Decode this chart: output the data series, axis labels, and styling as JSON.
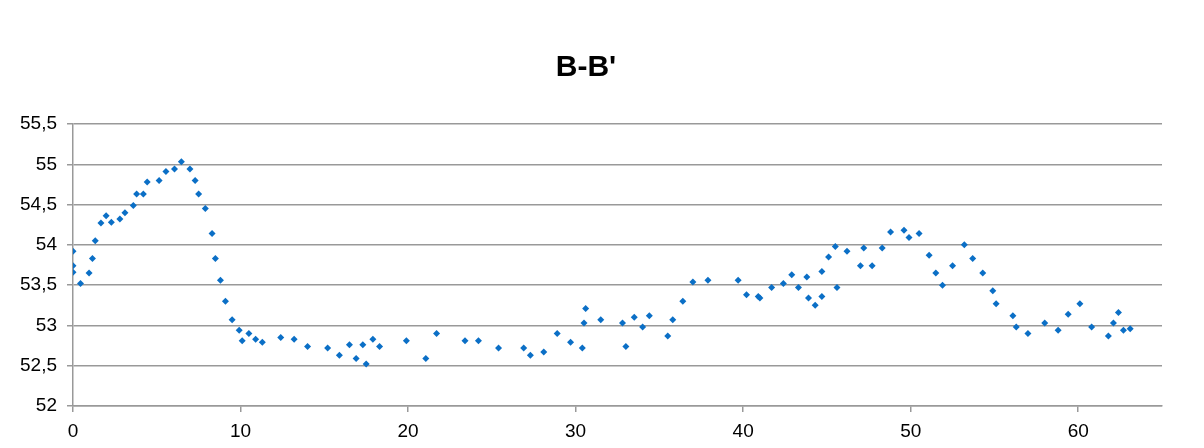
{
  "chart_data": {
    "type": "scatter",
    "title": "B-B'",
    "marker": "diamond",
    "grid": "y",
    "legend": false,
    "xlim": [
      0,
      65
    ],
    "xticks": [
      0,
      10,
      20,
      30,
      40,
      50,
      60
    ],
    "ylim": [
      52,
      55.5
    ],
    "yticks": [
      52,
      {
        "value": 52.5,
        "label": "52,5"
      },
      53,
      {
        "value": 53.5,
        "label": "53,5"
      },
      54,
      {
        "value": 54.5,
        "label": "54,5"
      },
      55,
      {
        "value": 55.5,
        "label": "55,5"
      }
    ],
    "series": [
      {
        "color": "#0b6fc6",
        "x": [
          0,
          0,
          0,
          0.45,
          0.96,
          1.16,
          1.33,
          1.67,
          1.98,
          2.29,
          2.8,
          3.1,
          3.6,
          3.8,
          4.2,
          4.43,
          5.14,
          5.55,
          6.06,
          6.47,
          6.98,
          7.29,
          7.5,
          7.9,
          8.3,
          8.5,
          8.8,
          9.1,
          9.5,
          9.92,
          10.1,
          10.5,
          10.9,
          11.3,
          12.4,
          13.2,
          14.0,
          15.2,
          15.9,
          16.5,
          16.9,
          17.3,
          17.5,
          17.9,
          18.3,
          19.9,
          21.06,
          21.7,
          23.4,
          24.2,
          25.4,
          26.9,
          27.3,
          28.1,
          28.9,
          29.7,
          30.4,
          30.5,
          30.6,
          31.5,
          32.8,
          33.0,
          33.5,
          34.0,
          34.4,
          35.5,
          35.8,
          36.4,
          37.0,
          37.9,
          39.7,
          40.2,
          40.9,
          41.0,
          41.7,
          42.4,
          42.9,
          43.3,
          43.8,
          43.9,
          44.3,
          44.7,
          44.7,
          45.1,
          45.5,
          45.6,
          46.2,
          47.0,
          47.2,
          47.7,
          48.3,
          48.8,
          49.6,
          49.9,
          50.5,
          51.1,
          51.5,
          51.9,
          52.5,
          53.2,
          53.7,
          54.3,
          54.9,
          55.1,
          56.1,
          56.3,
          57.0,
          58.0,
          58.8,
          59.4,
          60.1,
          60.8,
          61.8,
          62.1,
          62.4,
          62.7,
          63.1
        ],
        "values": [
          53.92,
          53.74,
          53.66,
          53.52,
          53.65,
          53.83,
          54.05,
          54.27,
          54.36,
          54.28,
          54.32,
          54.4,
          54.49,
          54.63,
          54.63,
          54.78,
          54.8,
          54.91,
          54.94,
          55.03,
          54.94,
          54.8,
          54.63,
          54.45,
          54.14,
          53.83,
          53.56,
          53.3,
          53.07,
          52.94,
          52.81,
          52.9,
          52.83,
          52.79,
          52.85,
          52.83,
          52.74,
          52.72,
          52.63,
          52.76,
          52.59,
          52.76,
          52.52,
          52.83,
          52.74,
          52.81,
          52.59,
          52.9,
          52.81,
          52.81,
          52.72,
          52.72,
          52.63,
          52.67,
          52.9,
          52.79,
          52.72,
          53.03,
          53.21,
          53.07,
          53.03,
          52.74,
          53.1,
          52.98,
          53.12,
          52.87,
          53.07,
          53.3,
          53.54,
          53.56,
          53.56,
          53.38,
          53.36,
          53.34,
          53.47,
          53.52,
          53.63,
          53.47,
          53.6,
          53.34,
          53.25,
          53.36,
          53.67,
          53.85,
          53.98,
          53.47,
          53.92,
          53.74,
          53.96,
          53.74,
          53.96,
          54.16,
          54.18,
          54.09,
          54.14,
          53.87,
          53.65,
          53.5,
          53.74,
          54.0,
          53.83,
          53.65,
          53.43,
          53.27,
          53.12,
          52.98,
          52.9,
          53.03,
          52.94,
          53.14,
          53.27,
          52.98,
          52.87,
          53.03,
          53.16,
          52.94,
          52.96
        ]
      }
    ]
  }
}
